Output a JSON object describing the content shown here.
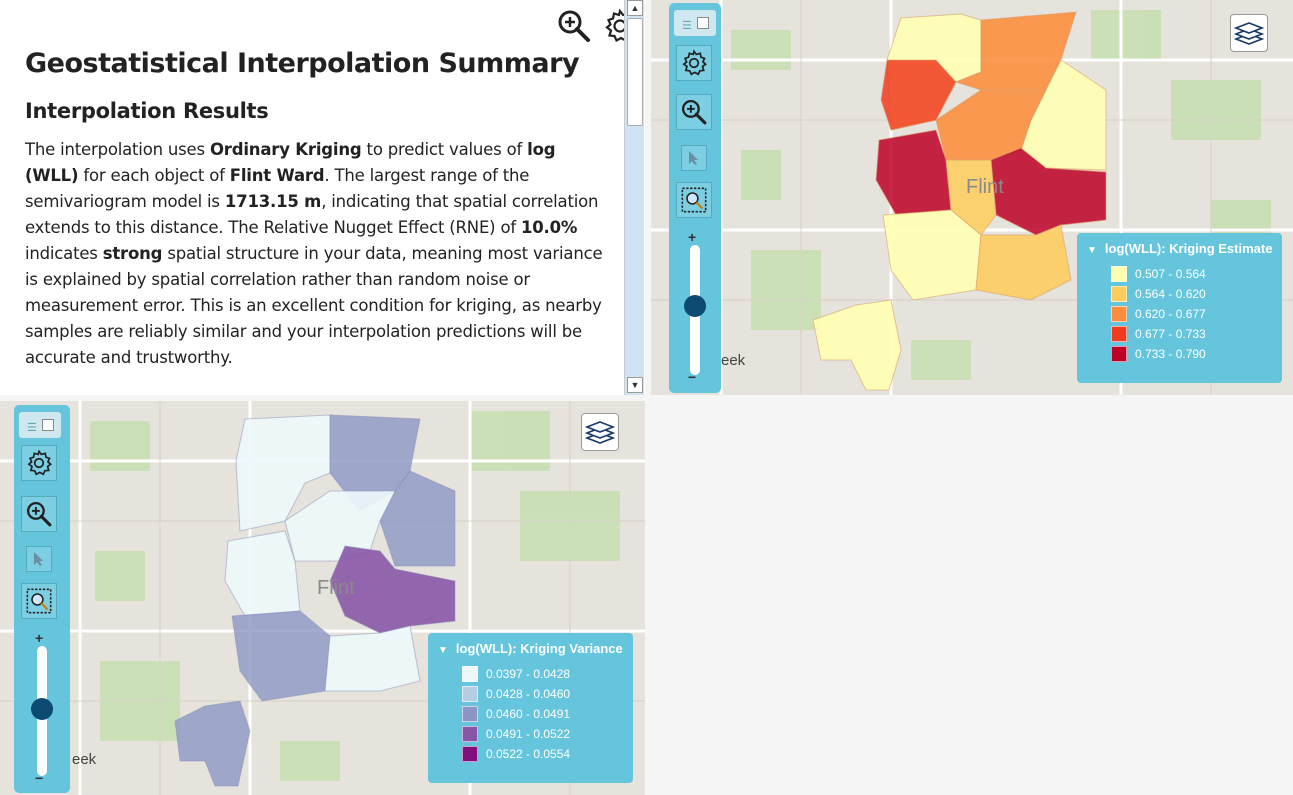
{
  "summary": {
    "title": "Geostatistical Interpolation Summary",
    "subtitle": "Interpolation Results",
    "p1": "The interpolation uses ",
    "method": "Ordinary Kriging",
    "p2": " to predict values of ",
    "variable": "log (WLL)",
    "p3": " for each object of ",
    "layer": "Flint Ward",
    "p4": ". The largest range of the semivariogram model is ",
    "range": "1713.15 m",
    "p5": ", indicating that spatial correlation extends to this distance. The Relative Nugget Effect (RNE) of ",
    "rne": "10.0%",
    "p6": " indicates ",
    "strength": "strong",
    "p7": " spatial structure in your data, meaning most variance is explained by spatial correlation rather than random noise or measurement error. This is an excellent condition for kriging, as nearby samples are reliably similar and your interpolation predictions will be accurate and trustworthy."
  },
  "map_estimate": {
    "town_label": "Flint",
    "small_label": "eek",
    "legend_title": "log(WLL): Kriging Estimate",
    "legend": [
      {
        "label": "0.507 - 0.564",
        "color": "#ffffb2"
      },
      {
        "label": "0.564 - 0.620",
        "color": "#fecc5c"
      },
      {
        "label": "0.620 - 0.677",
        "color": "#fd8d3c"
      },
      {
        "label": "0.677 - 0.733",
        "color": "#f03b20"
      },
      {
        "label": "0.733 - 0.790",
        "color": "#bd0026"
      }
    ]
  },
  "map_variance": {
    "town_label": "Flint",
    "small_label": "eek",
    "legend_title": "log(WLL): Kriging Variance",
    "legend": [
      {
        "label": "0.0397 - 0.0428",
        "color": "#edf8fb"
      },
      {
        "label": "0.0428 - 0.0460",
        "color": "#b3cde3"
      },
      {
        "label": "0.0460 - 0.0491",
        "color": "#8c96c6"
      },
      {
        "label": "0.0491 - 0.0522",
        "color": "#8856a7"
      },
      {
        "label": "0.0522 - 0.0554",
        "color": "#810f7c"
      }
    ]
  }
}
